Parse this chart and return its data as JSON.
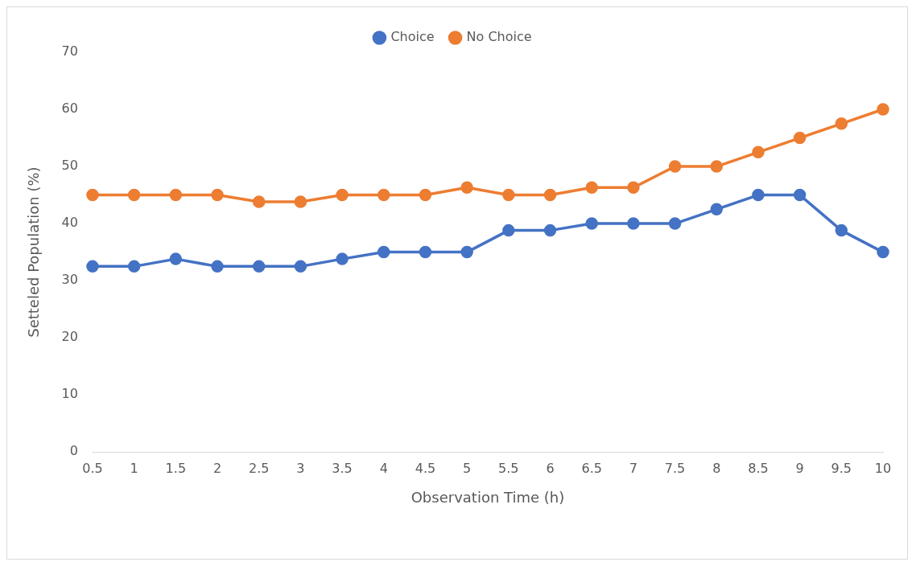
{
  "chart_data": {
    "type": "line",
    "xlabel": "Observation Time (h)",
    "ylabel": "Setteled Population (%)",
    "categories": [
      "0.5",
      "1",
      "1.5",
      "2",
      "2.5",
      "3",
      "3.5",
      "4",
      "4.5",
      "5",
      "5.5",
      "6",
      "6.5",
      "7",
      "7.5",
      "8",
      "8.5",
      "9",
      "9.5",
      "10"
    ],
    "series": [
      {
        "name": "Choice",
        "color": "#4472c4",
        "values": [
          32.5,
          32.5,
          33.8,
          32.5,
          32.5,
          32.5,
          33.8,
          35,
          35,
          35,
          38.8,
          38.8,
          40,
          40,
          40,
          42.5,
          45,
          45,
          38.8,
          35
        ]
      },
      {
        "name": "No Choice",
        "color": "#ed7d31",
        "values": [
          45,
          45,
          45,
          45,
          43.8,
          43.8,
          45,
          45,
          45,
          46.3,
          45,
          45,
          46.3,
          46.3,
          50,
          50,
          52.5,
          55,
          57.5,
          60
        ]
      }
    ],
    "ylim": [
      0,
      70
    ],
    "yticks": [
      0,
      10,
      20,
      30,
      40,
      50,
      60,
      70
    ],
    "grid": false,
    "legend": "top",
    "marker": "circle",
    "line_style": "solid"
  }
}
